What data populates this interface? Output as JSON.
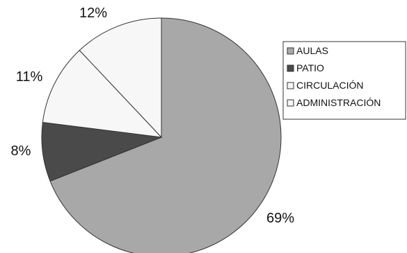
{
  "chart_data": {
    "type": "pie",
    "categories": [
      "AULAS",
      "PATIO",
      "CIRCULACIÓN",
      "ADMINISTRACIÓN"
    ],
    "values": [
      69,
      8,
      11,
      12
    ],
    "data_labels": [
      "69%",
      "8%",
      "11%",
      "12%"
    ],
    "colors": [
      "#a8a8a8",
      "#4a4a4a",
      "#f7f7f7",
      "#f7f7f7"
    ],
    "start_angle_deg": 0,
    "direction": "clockwise",
    "legend_position": "right"
  }
}
